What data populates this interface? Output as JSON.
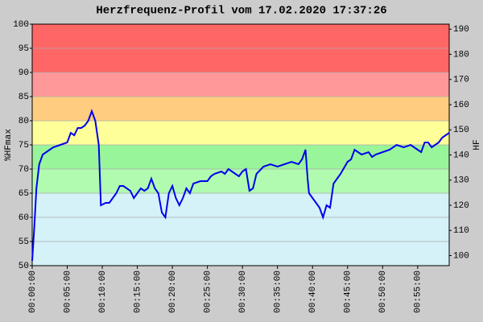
{
  "chart_data": {
    "type": "line",
    "title": "Herzfrequenz-Profil vom 17.02.2020 17:37:26",
    "ylabel": "%HFmax",
    "y2label": "HF",
    "color": "#0000ee",
    "x": [
      0,
      0.3,
      0.6,
      1,
      1.5,
      2,
      3,
      4,
      5,
      5.5,
      6,
      6.5,
      7,
      7.5,
      8,
      8.5,
      9,
      9.5,
      9.8,
      10.5,
      11,
      12,
      12.5,
      13,
      14,
      14.5,
      15,
      15.5,
      16,
      16.5,
      17,
      17.5,
      18,
      18.5,
      19,
      19.5,
      20,
      20.5,
      21,
      21.5,
      22,
      22.5,
      23,
      24,
      25,
      25.5,
      26,
      27,
      27.5,
      28,
      29,
      29.5,
      30,
      30.5,
      31,
      31.5,
      32,
      33,
      34,
      35,
      36,
      37,
      38,
      38.5,
      39,
      39.3,
      39.5,
      40,
      40.5,
      41,
      41.5,
      42,
      42.5,
      43,
      43.5,
      44,
      45,
      45.5,
      46,
      46.5,
      47,
      48,
      48.5,
      49,
      50,
      51,
      52,
      53,
      54,
      55,
      55.5,
      56,
      56.5,
      57,
      58,
      58.5,
      59,
      59.5
    ],
    "values": [
      51,
      58,
      66,
      71,
      73,
      73.5,
      74.5,
      75,
      75.5,
      77.5,
      77,
      78.5,
      78.5,
      79,
      80,
      82,
      80,
      75,
      62.5,
      63,
      63,
      65,
      66.5,
      66.5,
      65.5,
      64,
      65,
      66,
      65.5,
      66,
      68,
      66,
      65,
      61,
      60,
      65,
      66.5,
      64,
      62.5,
      64,
      66,
      65,
      67,
      67.5,
      67.5,
      68.5,
      69,
      69.5,
      69,
      70,
      69,
      68.5,
      69.5,
      70,
      65.5,
      66,
      69,
      70.5,
      71,
      70.5,
      71,
      71.5,
      71,
      72,
      74,
      68,
      65,
      64,
      63,
      62,
      60,
      62.5,
      62,
      67,
      68,
      69,
      71.5,
      72,
      74,
      73.5,
      73,
      73.5,
      72.5,
      73,
      73.5,
      74,
      75,
      74.5,
      75,
      74,
      73.5,
      75.5,
      75.5,
      74.5,
      75.5,
      76.5,
      77,
      77.5
    ],
    "xlim": [
      0,
      59.5
    ],
    "xticks": [
      {
        "value": 0,
        "label": "00:00:00"
      },
      {
        "value": 5,
        "label": "00:05:00"
      },
      {
        "value": 10,
        "label": "00:10:00"
      },
      {
        "value": 15,
        "label": "00:15:00"
      },
      {
        "value": 20,
        "label": "00:20:00"
      },
      {
        "value": 25,
        "label": "00:25:00"
      },
      {
        "value": 30,
        "label": "00:30:00"
      },
      {
        "value": 35,
        "label": "00:35:00"
      },
      {
        "value": 40,
        "label": "00:40:00"
      },
      {
        "value": 45,
        "label": "00:45:00"
      },
      {
        "value": 50,
        "label": "00:50:00"
      },
      {
        "value": 55,
        "label": "00:55:00"
      }
    ],
    "ylim": [
      50,
      100
    ],
    "yticks": [
      50,
      55,
      60,
      65,
      70,
      75,
      80,
      85,
      90,
      95,
      100
    ],
    "y2lim": [
      96,
      192
    ],
    "y2ticks": [
      100,
      110,
      120,
      130,
      140,
      150,
      160,
      170,
      180,
      190
    ],
    "zones": [
      {
        "from": 50,
        "to": 65,
        "color": "#d4f2f8"
      },
      {
        "from": 65,
        "to": 70,
        "color": "#b0fbb0"
      },
      {
        "from": 70,
        "to": 75,
        "color": "#99f599"
      },
      {
        "from": 75,
        "to": 80,
        "color": "#ffff99"
      },
      {
        "from": 80,
        "to": 85,
        "color": "#ffcc80"
      },
      {
        "from": 85,
        "to": 90,
        "color": "#ff9999"
      },
      {
        "from": 90,
        "to": 100,
        "color": "#ff6666"
      }
    ],
    "grid": true
  }
}
